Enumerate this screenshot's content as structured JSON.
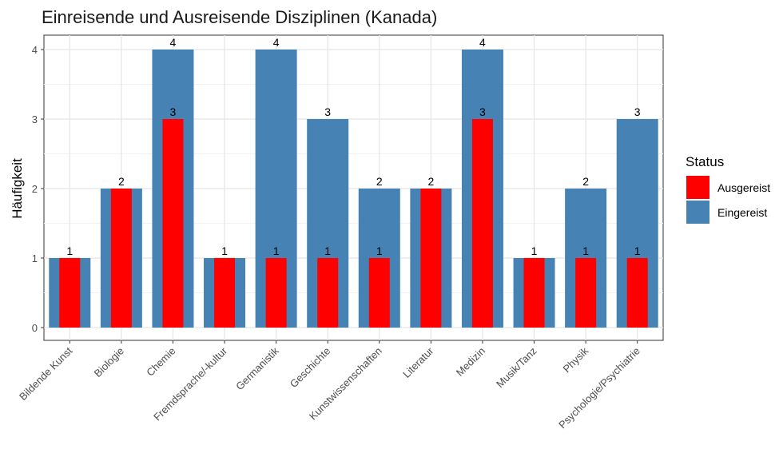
{
  "chart_data": {
    "type": "bar",
    "title": "Einreisende und Ausreisende Disziplinen (Kanada)",
    "xlabel": "",
    "ylabel": "Häufigkeit",
    "ylim": [
      0,
      4.2
    ],
    "yticks": [
      0,
      1,
      2,
      3,
      4
    ],
    "grid": true,
    "legend": {
      "title": "Status",
      "position": "right"
    },
    "categories": [
      "Bildende Kunst",
      "Biologie",
      "Chemie",
      "Fremdsprache/-kultur",
      "Germanistik",
      "Geschichte",
      "Kunstwissenschaften",
      "Literatur",
      "Medizin",
      "Musik/Tanz",
      "Physik",
      "Psychologie/Psychiatrie"
    ],
    "series": [
      {
        "name": "Ausgereist",
        "color": "#ff0000",
        "values": [
          1,
          2,
          3,
          1,
          1,
          1,
          1,
          2,
          3,
          1,
          1,
          1
        ]
      },
      {
        "name": "Eingereist",
        "color": "#4682b4",
        "values": [
          1,
          2,
          4,
          1,
          4,
          3,
          2,
          2,
          4,
          1,
          2,
          3
        ]
      }
    ]
  }
}
